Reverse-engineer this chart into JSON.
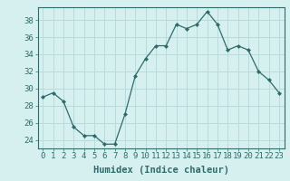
{
  "x": [
    0,
    1,
    2,
    3,
    4,
    5,
    6,
    7,
    8,
    9,
    10,
    11,
    12,
    13,
    14,
    15,
    16,
    17,
    18,
    19,
    20,
    21,
    22,
    23
  ],
  "y": [
    29,
    29.5,
    28.5,
    25.5,
    24.5,
    24.5,
    23.5,
    23.5,
    27,
    31.5,
    33.5,
    35,
    35,
    37.5,
    37,
    37.5,
    39,
    37.5,
    34.5,
    35,
    34.5,
    32,
    31,
    29.5
  ],
  "line_color": "#2e6b6b",
  "marker": "D",
  "marker_size": 2,
  "bg_color": "#d6f0f0",
  "grid_color": "#b8dcdc",
  "xlabel": "Humidex (Indice chaleur)",
  "ylim": [
    23.0,
    39.5
  ],
  "xlim": [
    -0.5,
    23.5
  ],
  "yticks": [
    24,
    26,
    28,
    30,
    32,
    34,
    36,
    38
  ],
  "xticks": [
    0,
    1,
    2,
    3,
    4,
    5,
    6,
    7,
    8,
    9,
    10,
    11,
    12,
    13,
    14,
    15,
    16,
    17,
    18,
    19,
    20,
    21,
    22,
    23
  ],
  "xlabel_fontsize": 7.5,
  "tick_fontsize": 6.5,
  "tick_color": "#2e6b6b",
  "axis_color": "#2e6b6b"
}
